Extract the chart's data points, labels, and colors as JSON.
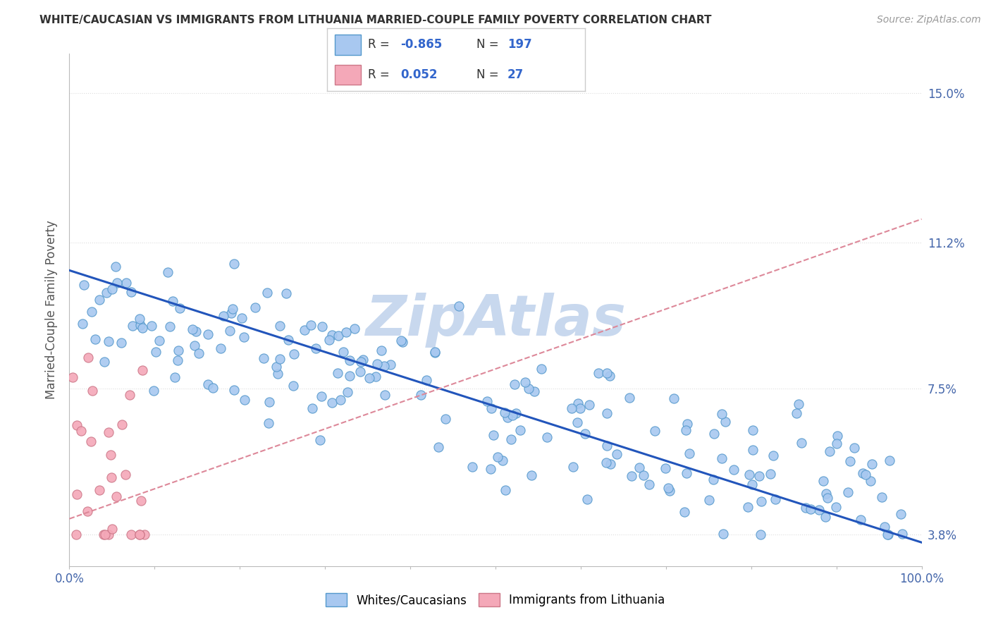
{
  "title": "WHITE/CAUCASIAN VS IMMIGRANTS FROM LITHUANIA MARRIED-COUPLE FAMILY POVERTY CORRELATION CHART",
  "source": "Source: ZipAtlas.com",
  "ylabel": "Married-Couple Family Poverty",
  "xlim": [
    0,
    100
  ],
  "ylim": [
    3.0,
    16.0
  ],
  "yticks": [
    3.8,
    7.5,
    11.2,
    15.0
  ],
  "ytick_labels": [
    "3.8%",
    "7.5%",
    "11.2%",
    "15.0%"
  ],
  "xticks": [
    0,
    10,
    20,
    30,
    40,
    50,
    60,
    70,
    80,
    90,
    100
  ],
  "xtick_labels": [
    "0.0%",
    "",
    "",
    "",
    "",
    "",
    "",
    "",
    "",
    "",
    "100.0%"
  ],
  "blue_color": "#a8c8f0",
  "blue_edge": "#5599cc",
  "pink_color": "#f4a8b8",
  "pink_edge": "#cc7788",
  "blue_line_color": "#2255bb",
  "pink_line_color": "#dd8899",
  "legend_label_blue": "Whites/Caucasians",
  "legend_label_pink": "Immigrants from Lithuania",
  "watermark": "ZipAtlas",
  "watermark_color": "#c8d8ee",
  "background_color": "#ffffff",
  "grid_color": "#dddddd",
  "blue_line_y0": 10.5,
  "blue_line_y1": 3.6,
  "pink_line_y0": 4.2,
  "pink_line_y1": 11.8
}
